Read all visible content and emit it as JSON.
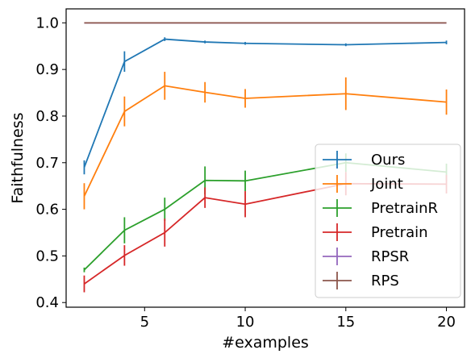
{
  "chart_data": {
    "type": "line",
    "title": "",
    "xlabel": "#examples",
    "ylabel": "Faithfulness",
    "x": [
      2,
      4,
      6,
      8,
      10,
      15,
      20
    ],
    "xlim": [
      1.1,
      20.9
    ],
    "ylim": [
      0.39,
      1.03
    ],
    "xticks": [
      5,
      10,
      15,
      20
    ],
    "yticks": [
      0.4,
      0.5,
      0.6,
      0.7,
      0.8,
      0.9,
      1.0
    ],
    "xtick_labels": [
      "5",
      "10",
      "15",
      "20"
    ],
    "ytick_labels": [
      "0.4",
      "0.5",
      "0.6",
      "0.7",
      "0.8",
      "0.9",
      "1.0"
    ],
    "grid": false,
    "legend_position": "lower right",
    "series": [
      {
        "name": "Ours",
        "color": "#1f77b4",
        "values": [
          0.69,
          0.917,
          0.965,
          0.959,
          0.956,
          0.953,
          0.958
        ],
        "errors": [
          0.015,
          0.022,
          0.004,
          0.003,
          0.003,
          0.003,
          0.004
        ]
      },
      {
        "name": "Joint",
        "color": "#ff7f0e",
        "values": [
          0.628,
          0.81,
          0.865,
          0.851,
          0.838,
          0.848,
          0.83
        ],
        "errors": [
          0.028,
          0.032,
          0.03,
          0.022,
          0.02,
          0.035,
          0.027
        ]
      },
      {
        "name": "PretrainR",
        "color": "#2ca02c",
        "values": [
          0.47,
          0.555,
          0.6,
          0.662,
          0.661,
          0.7,
          0.68
        ],
        "errors": [
          0.005,
          0.028,
          0.025,
          0.03,
          0.022,
          0.02,
          0.018
        ]
      },
      {
        "name": "Pretrain",
        "color": "#d62728",
        "values": [
          0.44,
          0.501,
          0.55,
          0.625,
          0.611,
          0.655,
          0.654
        ],
        "errors": [
          0.018,
          0.022,
          0.03,
          0.022,
          0.028,
          0.025,
          0.02
        ]
      },
      {
        "name": "RPSR",
        "color": "#9467bd",
        "values": [
          1.0,
          1.0,
          1.0,
          1.0,
          1.0,
          1.0,
          1.0
        ],
        "errors": [
          0,
          0,
          0,
          0,
          0,
          0,
          0
        ]
      },
      {
        "name": "RPS",
        "color": "#8c564b",
        "values": [
          1.0,
          1.0,
          1.0,
          1.0,
          1.0,
          1.0,
          1.0
        ],
        "errors": [
          0,
          0,
          0,
          0,
          0,
          0,
          0
        ]
      }
    ]
  }
}
